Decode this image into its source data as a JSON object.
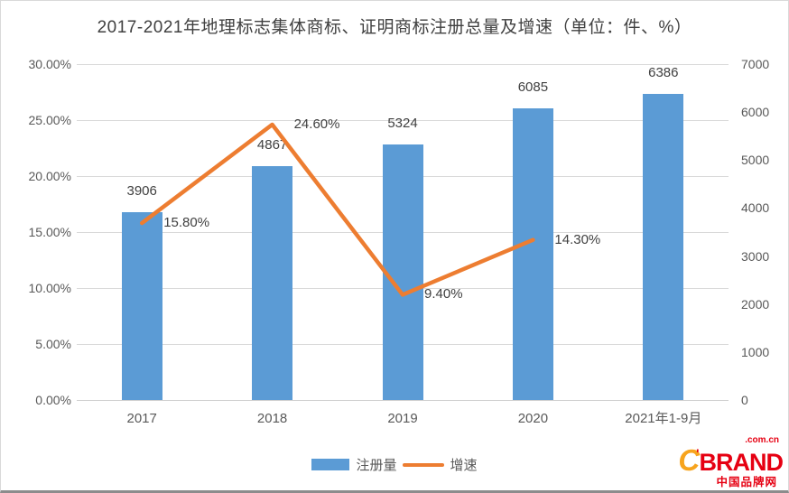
{
  "title": "2017-2021年地理标志集体商标、证明商标注册总量及增速（单位：件、%）",
  "chart_data": {
    "type": "bar",
    "subtype": "bar+line combo, dual axis",
    "title": "2017-2021年地理标志集体商标、证明商标注册总量及增速（单位：件、%）",
    "categories": [
      "2017",
      "2018",
      "2019",
      "2020",
      "2021年1-9月"
    ],
    "series": [
      {
        "name": "注册量",
        "type": "bar",
        "axis": "right",
        "color": "#5B9BD5",
        "values": [
          3906,
          4867,
          5324,
          6085,
          6386
        ],
        "data_labels": [
          "3906",
          "4867",
          "5324",
          "6085",
          "6386"
        ]
      },
      {
        "name": "增速",
        "type": "line",
        "axis": "left",
        "color": "#ED7D31",
        "values": [
          15.8,
          24.6,
          9.4,
          14.3,
          null
        ],
        "data_labels": [
          "15.80%",
          "24.60%",
          "9.40%",
          "14.30%",
          ""
        ]
      }
    ],
    "left_axis": {
      "min": 0,
      "max": 30,
      "step": 5,
      "tick_labels": [
        "30.00%",
        "25.00%",
        "20.00%",
        "15.00%",
        "10.00%",
        "5.00%",
        "0.00%"
      ]
    },
    "right_axis": {
      "min": 0,
      "max": 7000,
      "step": 1000,
      "tick_labels": [
        "7000",
        "6000",
        "5000",
        "4000",
        "3000",
        "2000",
        "1000",
        "0"
      ]
    },
    "legend": [
      {
        "label": "注册量",
        "color": "#5B9BD5",
        "shape": "rect"
      },
      {
        "label": "增速",
        "color": "#ED7D31",
        "shape": "line"
      }
    ],
    "grid": true,
    "legend_position": "bottom"
  },
  "watermark": {
    "brand_c": "C",
    "brand_tick": "'",
    "brand_rest": "BRAND",
    "domain": ".com.cn",
    "caption": "中国品牌网",
    "color_orange": "#F7A41D",
    "color_red": "#E60012"
  }
}
